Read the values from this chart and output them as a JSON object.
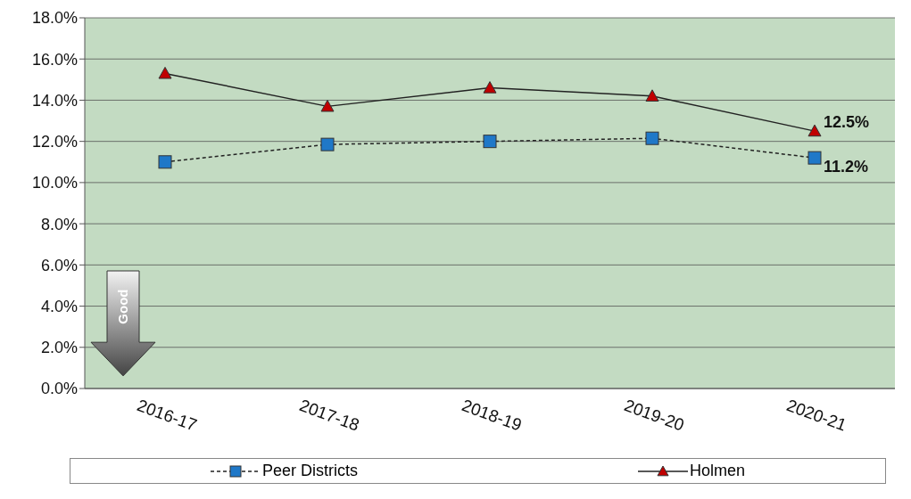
{
  "chart_data": {
    "type": "line",
    "categories": [
      "2016-17",
      "2017-18",
      "2018-19",
      "2019-20",
      "2020-21"
    ],
    "series": [
      {
        "name": "Peer Districts",
        "color": "#1f78c8",
        "marker": "square",
        "line_style": "dashed",
        "values": [
          11.0,
          11.85,
          12.0,
          12.15,
          11.2
        ],
        "value_labels": [
          null,
          null,
          null,
          null,
          "11.2%"
        ]
      },
      {
        "name": "Holmen",
        "color": "#c00000",
        "marker": "triangle",
        "line_style": "solid",
        "values": [
          15.3,
          13.7,
          14.6,
          14.2,
          12.5
        ],
        "value_labels": [
          null,
          null,
          null,
          null,
          "12.5%"
        ]
      }
    ],
    "ylim": [
      0,
      18
    ],
    "yticks": [
      {
        "value": 0,
        "label": "0.0%"
      },
      {
        "value": 2,
        "label": "2.0%"
      },
      {
        "value": 4,
        "label": "4.0%"
      },
      {
        "value": 6,
        "label": "6.0%"
      },
      {
        "value": 8,
        "label": "8.0%"
      },
      {
        "value": 10,
        "label": "10.0%"
      },
      {
        "value": 12,
        "label": "12.0%"
      },
      {
        "value": 14,
        "label": "14.0%"
      },
      {
        "value": 16,
        "label": "16.0%"
      },
      {
        "value": 18,
        "label": "18.0%"
      }
    ],
    "grid": "y",
    "legend": "bottom",
    "annotations": [
      "Good"
    ]
  }
}
